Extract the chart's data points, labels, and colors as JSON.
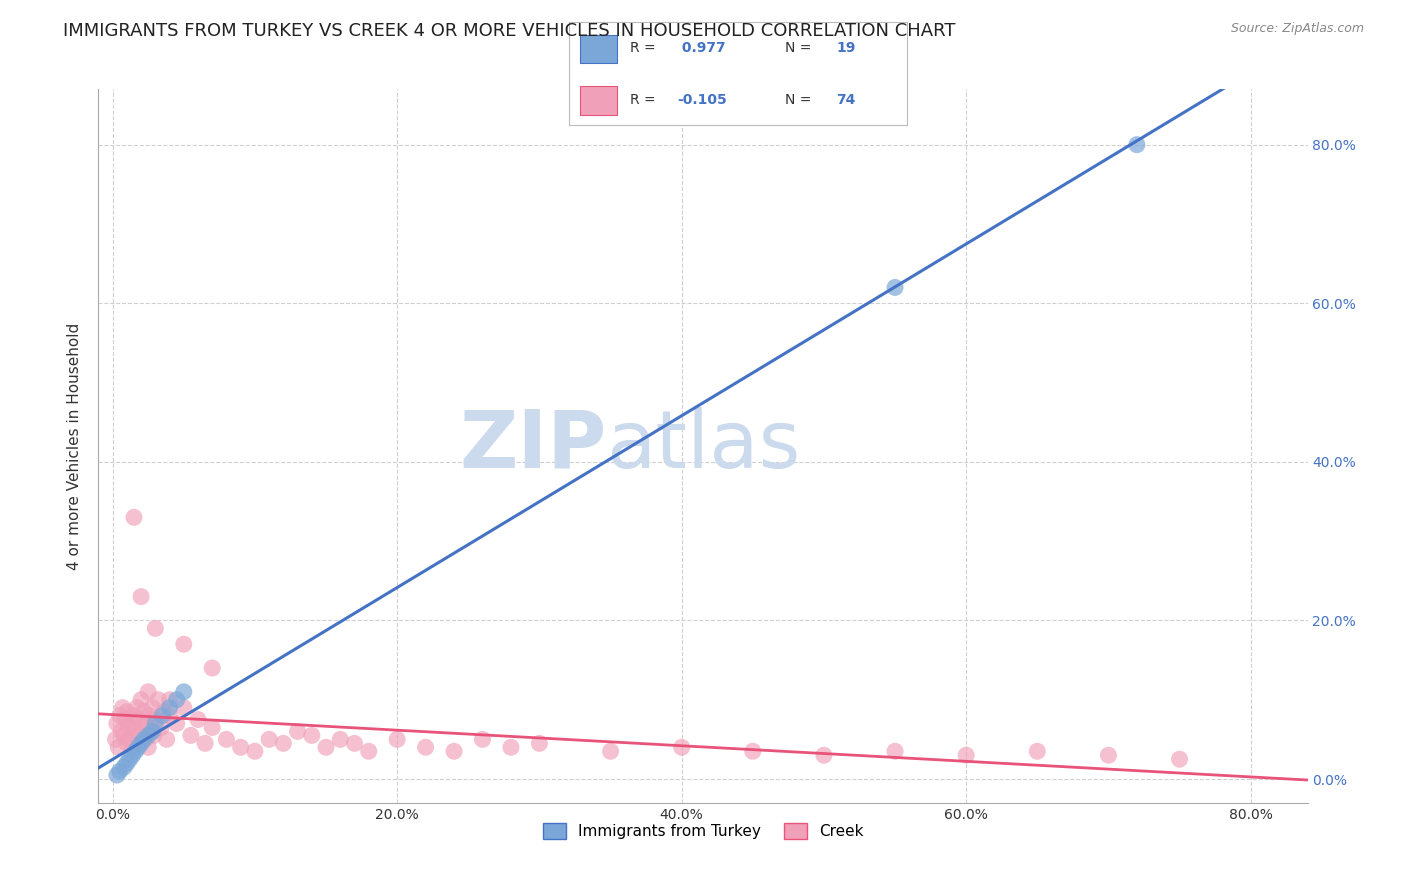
{
  "title": "IMMIGRANTS FROM TURKEY VS CREEK 4 OR MORE VEHICLES IN HOUSEHOLD CORRELATION CHART",
  "source": "Source: ZipAtlas.com",
  "ylabel": "4 or more Vehicles in Household",
  "x_tick_labels": [
    "0.0%",
    "20.0%",
    "40.0%",
    "60.0%",
    "80.0%"
  ],
  "x_tick_vals": [
    0.0,
    20.0,
    40.0,
    60.0,
    80.0
  ],
  "y_tick_labels": [
    "0.0%",
    "20.0%",
    "40.0%",
    "60.0%",
    "80.0%"
  ],
  "y_tick_vals": [
    0.0,
    20.0,
    40.0,
    60.0,
    80.0
  ],
  "xlim": [
    -1,
    84
  ],
  "ylim": [
    -3,
    87
  ],
  "blue_scatter_x": [
    0.3,
    0.5,
    0.8,
    1.0,
    1.2,
    1.4,
    1.6,
    1.8,
    2.0,
    2.2,
    2.5,
    2.8,
    3.0,
    3.5,
    4.0,
    4.5,
    5.0,
    55.0,
    72.0
  ],
  "blue_scatter_y": [
    0.5,
    1.0,
    1.5,
    2.0,
    2.5,
    3.0,
    3.5,
    4.0,
    4.5,
    5.0,
    5.5,
    6.0,
    7.0,
    8.0,
    9.0,
    10.0,
    11.0,
    62.0,
    80.0
  ],
  "pink_scatter_x": [
    0.2,
    0.3,
    0.4,
    0.5,
    0.6,
    0.7,
    0.8,
    0.9,
    1.0,
    1.0,
    1.1,
    1.2,
    1.3,
    1.4,
    1.5,
    1.6,
    1.7,
    1.8,
    1.9,
    2.0,
    2.1,
    2.2,
    2.3,
    2.4,
    2.5,
    2.6,
    2.7,
    2.8,
    2.9,
    3.0,
    3.2,
    3.4,
    3.6,
    3.8,
    4.0,
    4.5,
    5.0,
    5.5,
    6.0,
    6.5,
    7.0,
    8.0,
    9.0,
    10.0,
    11.0,
    12.0,
    13.0,
    14.0,
    15.0,
    16.0,
    17.0,
    18.0,
    20.0,
    22.0,
    24.0,
    26.0,
    28.0,
    30.0,
    35.0,
    40.0,
    45.0,
    50.0,
    55.0,
    60.0,
    65.0,
    70.0,
    75.0,
    1.5,
    2.0,
    3.0,
    5.0,
    7.0,
    2.5,
    4.0
  ],
  "pink_scatter_y": [
    5.0,
    7.0,
    4.0,
    8.0,
    6.0,
    9.0,
    5.5,
    7.5,
    4.5,
    8.5,
    6.5,
    5.0,
    7.0,
    4.0,
    8.0,
    6.0,
    9.0,
    5.5,
    7.5,
    10.0,
    6.5,
    8.5,
    5.0,
    7.0,
    4.0,
    8.0,
    6.0,
    9.0,
    5.5,
    7.5,
    10.0,
    6.5,
    8.5,
    5.0,
    10.0,
    7.0,
    9.0,
    5.5,
    7.5,
    4.5,
    6.5,
    5.0,
    4.0,
    3.5,
    5.0,
    4.5,
    6.0,
    5.5,
    4.0,
    5.0,
    4.5,
    3.5,
    5.0,
    4.0,
    3.5,
    5.0,
    4.0,
    4.5,
    3.5,
    4.0,
    3.5,
    3.0,
    3.5,
    3.0,
    3.5,
    3.0,
    2.5,
    33.0,
    23.0,
    19.0,
    17.0,
    14.0,
    11.0,
    8.0
  ],
  "blue_line_color": "#4472c4",
  "pink_line_color": "#e8537a",
  "watermark_zip": "ZIP",
  "watermark_atlas": "atlas",
  "watermark_color": "#ccdaee",
  "background_color": "#ffffff",
  "grid_color": "#d0d0d0",
  "title_fontsize": 13,
  "axis_label_fontsize": 11,
  "legend_blue_r": " 0.977",
  "legend_blue_n": "19",
  "legend_pink_r": "-0.105",
  "legend_pink_n": "74",
  "blue_dot_color": "#7ba7d8",
  "pink_dot_color": "#f0a0b8"
}
